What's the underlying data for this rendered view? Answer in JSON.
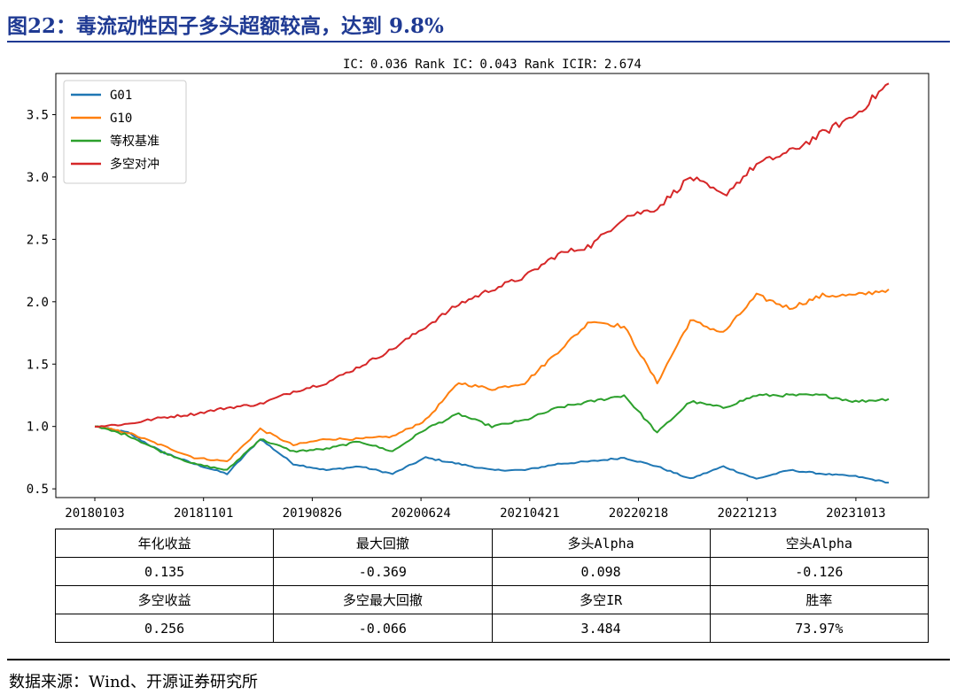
{
  "figure": {
    "title": "图22：毒流动性因子多头超额较高，达到 9.8%",
    "source": "数据来源：Wind、开源证券研究所"
  },
  "chart_data": {
    "type": "line",
    "title": "IC：0.036   Rank IC：0.043   Rank ICIR：2.674",
    "xlabel": "",
    "ylabel": "",
    "x_tick_labels": [
      "20180103",
      "20181101",
      "20190826",
      "20200624",
      "20210421",
      "20220218",
      "20221213",
      "20231013"
    ],
    "y_ticks": [
      0.5,
      1.0,
      1.5,
      2.0,
      2.5,
      3.0,
      3.5
    ],
    "y_tick_labels": [
      "0.5",
      "1.0",
      "1.5",
      "2.0",
      "2.5",
      "3.0",
      "3.5"
    ],
    "ylim": [
      0.43,
      3.83
    ],
    "grid": false,
    "legend_position": "top-left",
    "x": [
      "2018-01",
      "2018-04",
      "2018-07",
      "2018-10",
      "2019-01",
      "2019-04",
      "2019-07",
      "2019-10",
      "2020-01",
      "2020-04",
      "2020-07",
      "2020-10",
      "2021-01",
      "2021-04",
      "2021-07",
      "2021-10",
      "2022-01",
      "2022-04",
      "2022-07",
      "2022-10",
      "2023-01",
      "2023-04",
      "2023-07",
      "2023-10",
      "2024-01"
    ],
    "series": [
      {
        "name": "G01",
        "color": "#1f77b4",
        "values": [
          1.0,
          0.95,
          0.8,
          0.7,
          0.62,
          0.9,
          0.7,
          0.65,
          0.68,
          0.62,
          0.75,
          0.7,
          0.65,
          0.65,
          0.7,
          0.72,
          0.75,
          0.68,
          0.58,
          0.68,
          0.58,
          0.65,
          0.62,
          0.6,
          0.55
        ]
      },
      {
        "name": "G10",
        "color": "#ff7f0e",
        "values": [
          1.0,
          0.95,
          0.85,
          0.75,
          0.72,
          0.98,
          0.85,
          0.9,
          0.9,
          0.92,
          1.05,
          1.35,
          1.3,
          1.35,
          1.6,
          1.85,
          1.8,
          1.35,
          1.85,
          1.75,
          2.05,
          1.95,
          2.05,
          2.05,
          2.1
        ]
      },
      {
        "name": "等权基准",
        "color": "#2ca02c",
        "values": [
          1.0,
          0.93,
          0.8,
          0.7,
          0.65,
          0.9,
          0.8,
          0.82,
          0.88,
          0.8,
          0.98,
          1.1,
          1.0,
          1.05,
          1.15,
          1.2,
          1.25,
          0.95,
          1.2,
          1.15,
          1.25,
          1.25,
          1.25,
          1.2,
          1.22
        ]
      },
      {
        "name": "多空对冲",
        "color": "#d62728",
        "values": [
          1.0,
          1.02,
          1.07,
          1.1,
          1.15,
          1.18,
          1.28,
          1.35,
          1.48,
          1.62,
          1.8,
          1.98,
          2.1,
          2.2,
          2.38,
          2.45,
          2.68,
          2.75,
          3.0,
          2.85,
          3.1,
          3.2,
          3.35,
          3.5,
          3.75
        ]
      }
    ]
  },
  "stats_table": {
    "rows": [
      [
        "年化收益",
        "最大回撤",
        "多头Alpha",
        "空头Alpha"
      ],
      [
        "0.135",
        "-0.369",
        "0.098",
        "-0.126"
      ],
      [
        "多空收益",
        "多空最大回撤",
        "多空IR",
        "胜率"
      ],
      [
        "0.256",
        "-0.066",
        "3.484",
        "73.97%"
      ]
    ]
  }
}
